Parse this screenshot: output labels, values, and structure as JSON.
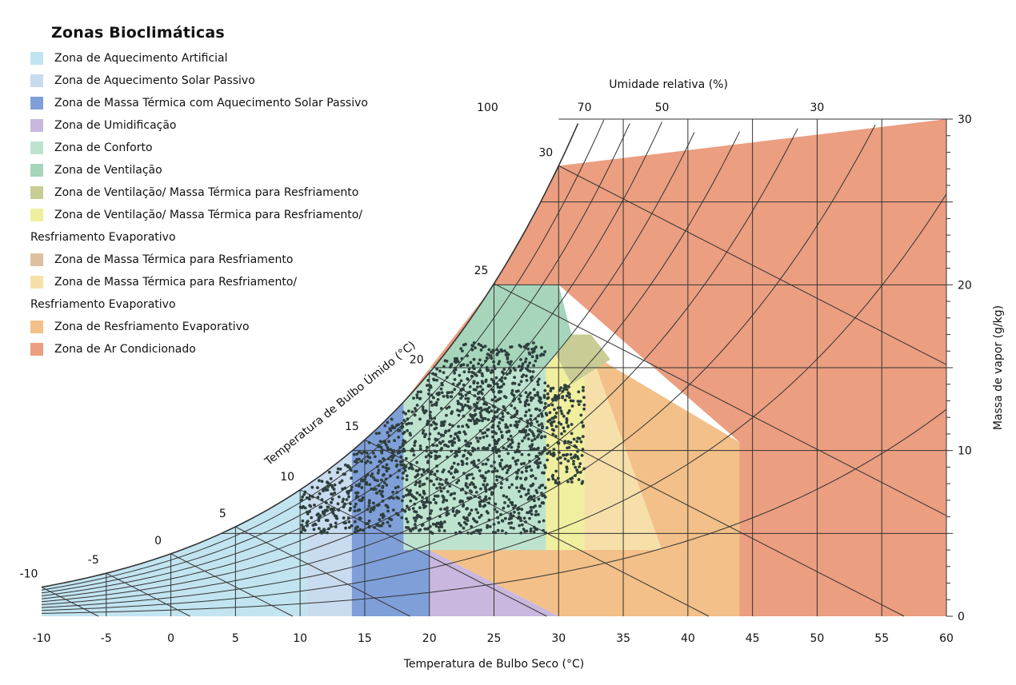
{
  "chart_data": {
    "type": "scatter",
    "title": "Zonas Bioclimáticas",
    "xlabel": "Temperatura de Bulbo Seco (°C)",
    "ylabel": "Massa de vapor (g/kg)",
    "rh_label": "Umidade relativa (%)",
    "wb_label": "Temperatura de Bulbo Úmido (°C)",
    "xlim": [
      -10,
      60
    ],
    "ylim": [
      0,
      30
    ],
    "x_ticks": [
      "-10",
      "-5",
      "0",
      "5",
      "10",
      "15",
      "20",
      "25",
      "30",
      "35",
      "40",
      "45",
      "50",
      "55",
      "60"
    ],
    "y_ticks": [
      "0",
      "10",
      "20",
      "30"
    ],
    "rh_ticks": [
      "100",
      "70",
      "50",
      "30"
    ],
    "wb_ticks": [
      "-10",
      "-5",
      "0",
      "5",
      "10",
      "15",
      "20",
      "25",
      "30"
    ],
    "legend": [
      {
        "label": "Zona de Aquecimento Artificial",
        "color": "#c2e4f1"
      },
      {
        "label": "Zona de Aquecimento Solar Passivo",
        "color": "#c9dbee"
      },
      {
        "label": "Zona de Massa Térmica com Aquecimento Solar Passivo",
        "color": "#7f9fd9"
      },
      {
        "label": "Zona de Umidificação",
        "color": "#c9b7de"
      },
      {
        "label": "Zona de Conforto",
        "color": "#bde3cf"
      },
      {
        "label": "Zona de Ventilação",
        "color": "#a6d5bb"
      },
      {
        "label": "Zona de Ventilação/ Massa Térmica para Resfriamento",
        "color": "#c9cc94"
      },
      {
        "label": "Zona de Ventilação/ Massa Térmica para Resfriamento/",
        "label2": "Resfriamento Evaporativo",
        "color": "#f0ef9f"
      },
      {
        "label": "Zona de Massa Térmica para Resfriamento",
        "color": "#dcc0a0"
      },
      {
        "label": "Zona de Massa Térmica para Resfriamento/",
        "label2": "Resfriamento Evaporativo",
        "color": "#f7dfaa"
      },
      {
        "label": "Zona de Resfriamento Evaporativo",
        "color": "#f2c088"
      },
      {
        "label": "Zona de Ar Condicionado",
        "color": "#eb9e80"
      }
    ],
    "scatter_cloud": {
      "x_range": [
        10,
        32
      ],
      "y_range": [
        5,
        17
      ],
      "count": 2600,
      "color": "#2e3f3c"
    }
  }
}
